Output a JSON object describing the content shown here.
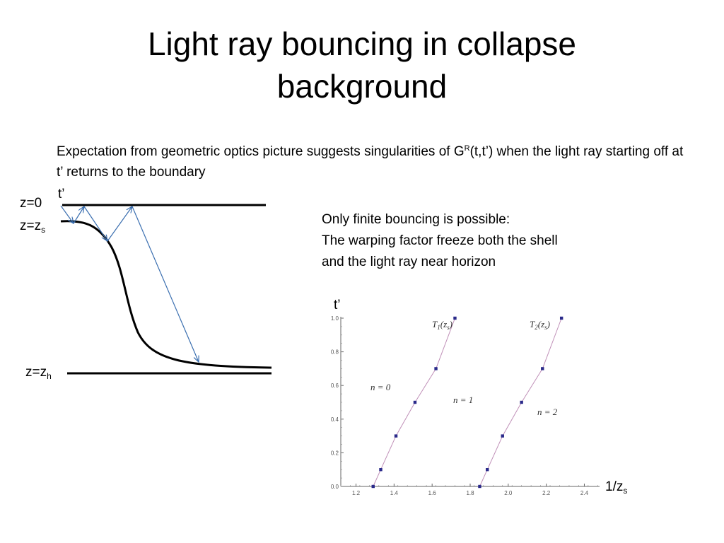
{
  "title": {
    "line1": "Light ray bouncing in collapse",
    "line2": "background"
  },
  "intro": {
    "pre": "Expectation from geometric optics picture suggests singularities of G",
    "sup": "R",
    "post": "(t,t’) when the light ray starting off at t’ returns to the boundary"
  },
  "note": {
    "line1": "Only finite bouncing is possible:",
    "line2": "The warping factor freeze both the shell",
    "line3": "and the light ray near horizon"
  },
  "diagram": {
    "t_prime": "t’",
    "z0": "z=0",
    "zs_main": "z=z",
    "zs_sub": "s",
    "zh_main": "z=z",
    "zh_sub": "h"
  },
  "chart_data": {
    "type": "scatter",
    "ylabel": "t’",
    "xlabel_main": "1/z",
    "xlabel_sub": "s",
    "xlim": [
      1.12,
      2.48
    ],
    "ylim": [
      0,
      1.0
    ],
    "xticks": [
      "1.2",
      "1.4",
      "1.6",
      "1.8",
      "2.0",
      "2.2",
      "2.4"
    ],
    "xtick_values": [
      1.2,
      1.4,
      1.6,
      1.8,
      2.0,
      2.2,
      2.4
    ],
    "yticks": [
      "0.0",
      "0.2",
      "0.4",
      "0.6",
      "0.8",
      "1.0"
    ],
    "ytick_values": [
      0.0,
      0.2,
      0.4,
      0.6,
      0.8,
      1.0
    ],
    "curve_labels": [
      {
        "text": "T",
        "sub": "1",
        "arg": "(z",
        "argsub": "s",
        "close": ")"
      },
      {
        "text": "T",
        "sub": "2",
        "arg": "(z",
        "argsub": "s",
        "close": ")"
      }
    ],
    "region_labels": [
      "n = 0",
      "n = 1",
      "n = 2"
    ],
    "series": [
      {
        "x": [
          1.29,
          1.33,
          1.41,
          1.51,
          1.62,
          1.72
        ],
        "y": [
          0.0,
          0.1,
          0.3,
          0.5,
          0.7,
          1.0
        ],
        "markers": "square",
        "color": "#2a2a8a"
      },
      {
        "x": [
          1.85,
          1.89,
          1.97,
          2.07,
          2.18,
          2.28
        ],
        "y": [
          0.0,
          0.1,
          0.3,
          0.5,
          0.7,
          1.0
        ],
        "markers": "square",
        "color": "#2a2a8a"
      }
    ],
    "line_color": "#c090b8"
  }
}
